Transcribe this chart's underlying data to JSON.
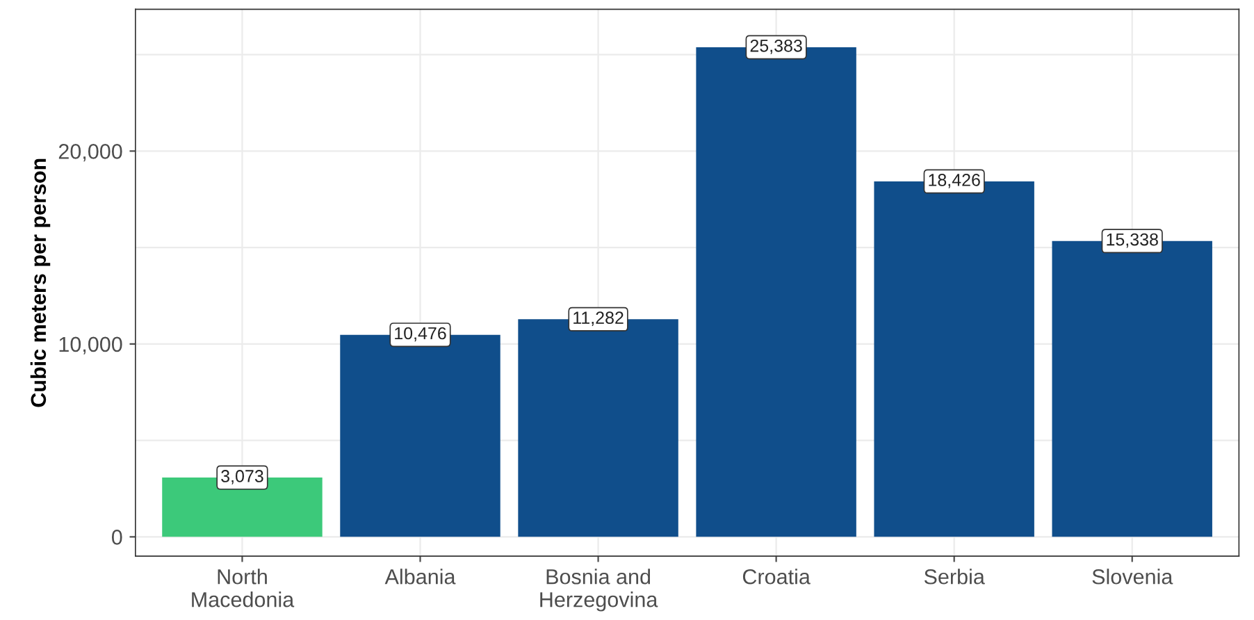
{
  "chart_data": {
    "type": "bar",
    "ylabel": "Cubic meters per person",
    "categories": [
      "North\nMacedonia",
      "Albania",
      "Bosnia and\nHerzegovina",
      "Croatia",
      "Serbia",
      "Slovenia"
    ],
    "values": [
      3073,
      10476,
      11282,
      25383,
      18426,
      15338
    ],
    "colors": [
      "#3cc97a",
      "#104e8b",
      "#104e8b",
      "#104e8b",
      "#104e8b",
      "#104e8b"
    ],
    "value_labels": [
      "3,073",
      "10,476",
      "11,282",
      "25,383",
      "18,426",
      "15,338"
    ],
    "ylim": [
      -1000,
      27350
    ],
    "yticks": [
      {
        "value": 0,
        "label": "0"
      },
      {
        "value": 5000,
        "label": null
      },
      {
        "value": 10000,
        "label": "10,000"
      },
      {
        "value": 15000,
        "label": null
      },
      {
        "value": 20000,
        "label": "20,000"
      },
      {
        "value": 25000,
        "label": null
      }
    ],
    "grid": true,
    "legend": false
  }
}
